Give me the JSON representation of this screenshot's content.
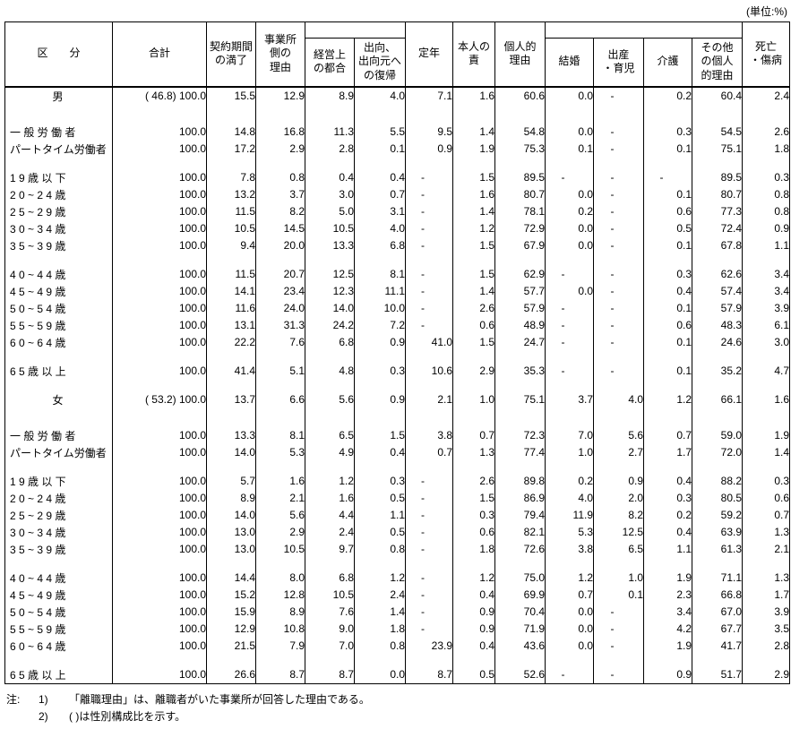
{
  "unit_label": "(単位:%)",
  "table": {
    "headers": {
      "kubun": "区　　分",
      "gokei": "合計",
      "keiyaku": "契約期間\nの満了",
      "jigyosho": "事業所\n側の\n理由",
      "keiei": "経営上\nの都合",
      "shukko": "出向、\n出向元へ\nの復帰",
      "teinen": "定年",
      "honnin": "本人の\n責",
      "kojin": "個人的\n理由",
      "kekkon": "結婚",
      "shussan": "出産\n・育児",
      "kaigo": "介護",
      "sonota": "その他\nの個人\n的理由",
      "shibo": "死亡\n・傷病"
    },
    "rows": [
      {
        "label": "男",
        "center": true,
        "paren": "( 46.8)",
        "values": [
          "100.0",
          "15.5",
          "12.9",
          "8.9",
          "4.0",
          "7.1",
          "1.6",
          "60.6",
          "0.0",
          "-",
          "0.2",
          "60.4",
          "2.4"
        ]
      },
      {
        "label": "一 般 労 働 者",
        "gap": "lg",
        "values": [
          "100.0",
          "14.8",
          "16.8",
          "11.3",
          "5.5",
          "9.5",
          "1.4",
          "54.8",
          "0.0",
          "-",
          "0.3",
          "54.5",
          "2.6"
        ]
      },
      {
        "label": "パートタイム労働者",
        "values": [
          "100.0",
          "17.2",
          "2.9",
          "2.8",
          "0.1",
          "0.9",
          "1.9",
          "75.3",
          "0.1",
          "-",
          "0.1",
          "75.1",
          "1.8"
        ]
      },
      {
        "label": "1 9 歳 以 下",
        "gap": true,
        "values": [
          "100.0",
          "7.8",
          "0.8",
          "0.4",
          "0.4",
          "-",
          "1.5",
          "89.5",
          "-",
          "-",
          "-",
          "89.5",
          "0.3"
        ]
      },
      {
        "label": "2 0 ~ 2 4 歳",
        "values": [
          "100.0",
          "13.2",
          "3.7",
          "3.0",
          "0.7",
          "-",
          "1.6",
          "80.7",
          "0.0",
          "-",
          "0.1",
          "80.7",
          "0.8"
        ]
      },
      {
        "label": "2 5 ~ 2 9 歳",
        "values": [
          "100.0",
          "11.5",
          "8.2",
          "5.0",
          "3.1",
          "-",
          "1.4",
          "78.1",
          "0.2",
          "-",
          "0.6",
          "77.3",
          "0.8"
        ]
      },
      {
        "label": "3 0 ~ 3 4 歳",
        "values": [
          "100.0",
          "10.5",
          "14.5",
          "10.5",
          "4.0",
          "-",
          "1.2",
          "72.9",
          "0.0",
          "-",
          "0.5",
          "72.4",
          "0.9"
        ]
      },
      {
        "label": "3 5 ~ 3 9 歳",
        "values": [
          "100.0",
          "9.4",
          "20.0",
          "13.3",
          "6.8",
          "-",
          "1.5",
          "67.9",
          "0.0",
          "-",
          "0.1",
          "67.8",
          "1.1"
        ]
      },
      {
        "label": "4 0 ~ 4 4 歳",
        "gap": true,
        "values": [
          "100.0",
          "11.5",
          "20.7",
          "12.5",
          "8.1",
          "-",
          "1.5",
          "62.9",
          "-",
          "-",
          "0.3",
          "62.6",
          "3.4"
        ]
      },
      {
        "label": "4 5 ~ 4 9 歳",
        "values": [
          "100.0",
          "14.1",
          "23.4",
          "12.3",
          "11.1",
          "-",
          "1.4",
          "57.7",
          "0.0",
          "-",
          "0.4",
          "57.4",
          "3.4"
        ]
      },
      {
        "label": "5 0 ~ 5 4 歳",
        "values": [
          "100.0",
          "11.6",
          "24.0",
          "14.0",
          "10.0",
          "-",
          "2.6",
          "57.9",
          "-",
          "-",
          "0.1",
          "57.9",
          "3.9"
        ]
      },
      {
        "label": "5 5 ~ 5 9 歳",
        "values": [
          "100.0",
          "13.1",
          "31.3",
          "24.2",
          "7.2",
          "-",
          "0.6",
          "48.9",
          "-",
          "-",
          "0.6",
          "48.3",
          "6.1"
        ]
      },
      {
        "label": "6 0 ~ 6 4 歳",
        "values": [
          "100.0",
          "22.2",
          "7.6",
          "6.8",
          "0.9",
          "41.0",
          "1.5",
          "24.7",
          "-",
          "-",
          "0.1",
          "24.6",
          "3.0"
        ]
      },
      {
        "label": "6 5 歳 以 上",
        "gap": true,
        "values": [
          "100.0",
          "41.4",
          "5.1",
          "4.8",
          "0.3",
          "10.6",
          "2.9",
          "35.3",
          "-",
          "-",
          "0.1",
          "35.2",
          "4.7"
        ]
      },
      {
        "label": "女",
        "center": true,
        "paren": "( 53.2)",
        "gap": true,
        "values": [
          "100.0",
          "13.7",
          "6.6",
          "5.6",
          "0.9",
          "2.1",
          "1.0",
          "75.1",
          "3.7",
          "4.0",
          "1.2",
          "66.1",
          "1.6"
        ]
      },
      {
        "label": "一 般 労 働 者",
        "gap": "lg",
        "values": [
          "100.0",
          "13.3",
          "8.1",
          "6.5",
          "1.5",
          "3.8",
          "0.7",
          "72.3",
          "7.0",
          "5.6",
          "0.7",
          "59.0",
          "1.9"
        ]
      },
      {
        "label": "パートタイム労働者",
        "values": [
          "100.0",
          "14.0",
          "5.3",
          "4.9",
          "0.4",
          "0.7",
          "1.3",
          "77.4",
          "1.0",
          "2.7",
          "1.7",
          "72.0",
          "1.4"
        ]
      },
      {
        "label": "1 9 歳 以 下",
        "gap": true,
        "values": [
          "100.0",
          "5.7",
          "1.6",
          "1.2",
          "0.3",
          "-",
          "2.6",
          "89.8",
          "0.2",
          "0.9",
          "0.4",
          "88.2",
          "0.3"
        ]
      },
      {
        "label": "2 0 ~ 2 4 歳",
        "values": [
          "100.0",
          "8.9",
          "2.1",
          "1.6",
          "0.5",
          "-",
          "1.5",
          "86.9",
          "4.0",
          "2.0",
          "0.3",
          "80.5",
          "0.6"
        ]
      },
      {
        "label": "2 5 ~ 2 9 歳",
        "values": [
          "100.0",
          "14.0",
          "5.6",
          "4.4",
          "1.1",
          "-",
          "0.3",
          "79.4",
          "11.9",
          "8.2",
          "0.2",
          "59.2",
          "0.7"
        ]
      },
      {
        "label": "3 0 ~ 3 4 歳",
        "values": [
          "100.0",
          "13.0",
          "2.9",
          "2.4",
          "0.5",
          "-",
          "0.6",
          "82.1",
          "5.3",
          "12.5",
          "0.4",
          "63.9",
          "1.3"
        ]
      },
      {
        "label": "3 5 ~ 3 9 歳",
        "values": [
          "100.0",
          "13.0",
          "10.5",
          "9.7",
          "0.8",
          "-",
          "1.8",
          "72.6",
          "3.8",
          "6.5",
          "1.1",
          "61.3",
          "2.1"
        ]
      },
      {
        "label": "4 0 ~ 4 4 歳",
        "gap": true,
        "values": [
          "100.0",
          "14.4",
          "8.0",
          "6.8",
          "1.2",
          "-",
          "1.2",
          "75.0",
          "1.2",
          "1.0",
          "1.9",
          "71.1",
          "1.3"
        ]
      },
      {
        "label": "4 5 ~ 4 9 歳",
        "values": [
          "100.0",
          "15.2",
          "12.8",
          "10.5",
          "2.4",
          "-",
          "0.4",
          "69.9",
          "0.7",
          "0.1",
          "2.3",
          "66.8",
          "1.7"
        ]
      },
      {
        "label": "5 0 ~ 5 4 歳",
        "values": [
          "100.0",
          "15.9",
          "8.9",
          "7.6",
          "1.4",
          "-",
          "0.9",
          "70.4",
          "0.0",
          "-",
          "3.4",
          "67.0",
          "3.9"
        ]
      },
      {
        "label": "5 5 ~ 5 9 歳",
        "values": [
          "100.0",
          "12.9",
          "10.8",
          "9.0",
          "1.8",
          "-",
          "0.9",
          "71.9",
          "0.0",
          "-",
          "4.2",
          "67.7",
          "3.5"
        ]
      },
      {
        "label": "6 0 ~ 6 4 歳",
        "values": [
          "100.0",
          "21.5",
          "7.9",
          "7.0",
          "0.8",
          "23.9",
          "0.4",
          "43.6",
          "0.0",
          "-",
          "1.9",
          "41.7",
          "2.8"
        ]
      },
      {
        "label": "6 5 歳 以 上",
        "gap": true,
        "values": [
          "100.0",
          "26.6",
          "8.7",
          "8.7",
          "0.0",
          "8.7",
          "0.5",
          "52.6",
          "-",
          "-",
          "0.9",
          "51.7",
          "2.9"
        ]
      }
    ]
  },
  "notes": {
    "prefix": "注:",
    "items": [
      {
        "no": "1)",
        "text": "「離職理由」は、離職者がいた事業所が回答した理由である。"
      },
      {
        "no": "2)",
        "text": "(  )は性別構成比を示す。"
      }
    ]
  }
}
